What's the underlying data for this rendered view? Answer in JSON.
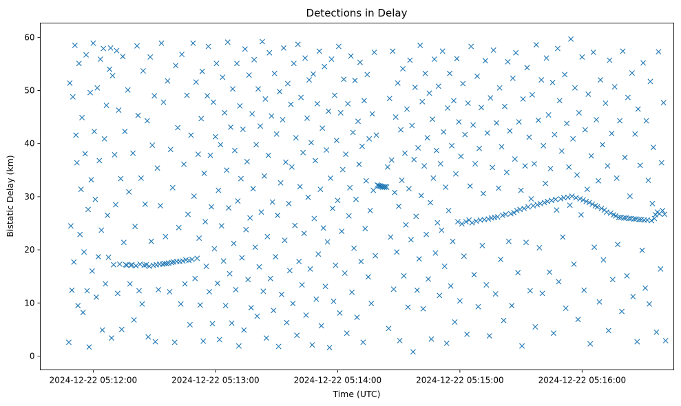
{
  "chart_data": {
    "type": "scatter",
    "title": "Detections in Delay",
    "xlabel": "Time (UTC)",
    "ylabel": "Bistatic Delay (km)",
    "marker": "x",
    "color": "#1f77b4",
    "grid": false,
    "legend": "none",
    "xlim": [
      "2024-12-22 05:11:34",
      "2024-12-22 05:16:45"
    ],
    "ylim": [
      -2.6,
      62.7
    ],
    "xticks": [
      "2024-12-22 05:12:00",
      "2024-12-22 05:13:00",
      "2024-12-22 05:14:00",
      "2024-12-22 05:15:00",
      "2024-12-22 05:16:00"
    ],
    "yticks": [
      0,
      10,
      20,
      30,
      40,
      50,
      60
    ],
    "x_start": "2024-12-22 05:11:48",
    "x_step_seconds": 0.5,
    "y": [
      2.6,
      51.4,
      24.5,
      12.4,
      48.8,
      17.7,
      58.5,
      41.6,
      36.4,
      9.5,
      55.1,
      22.9,
      31.4,
      44.9,
      8.2,
      19.6,
      38.1,
      56.7,
      12.3,
      27.6,
      1.7,
      49.6,
      33.2,
      16.0,
      58.9,
      42.3,
      29.5,
      11.1,
      50.5,
      18.7,
      36.8,
      55.9,
      23.7,
      4.9,
      57.9,
      40.9,
      13.6,
      47.2,
      26.5,
      18.6,
      54.0,
      58.0,
      3.4,
      52.8,
      17.2,
      37.9,
      28.5,
      57.5,
      11.8,
      46.3,
      17.3,
      33.4,
      5.0,
      56.4,
      21.4,
      42.3,
      17.2,
      17.1,
      50.1,
      30.9,
      13.6,
      17.1,
      17.2,
      38.2,
      6.8,
      24.4,
      17.0,
      58.4,
      45.3,
      12.3,
      17.3,
      33.5,
      9.8,
      53.7,
      17.1,
      28.6,
      17.2,
      44.3,
      3.6,
      16.9,
      56.3,
      21.6,
      39.7,
      17.1,
      49.0,
      2.7,
      17.2,
      35.4,
      12.5,
      17.3,
      28.3,
      58.9,
      17.3,
      47.8,
      17.4,
      22.5,
      17.4,
      51.8,
      17.5,
      12.1,
      38.9,
      17.6,
      31.7,
      17.7,
      2.6,
      54.7,
      17.8,
      43.0,
      24.2,
      17.8,
      9.8,
      56.8,
      17.9,
      36.1,
      13.6,
      18.1,
      49.1,
      26.7,
      18.0,
      5.9,
      41.6,
      18.2,
      58.9,
      30.1,
      14.6,
      51.6,
      18.4,
      38.0,
      22.2,
      9.6,
      44.7,
      53.6,
      2.8,
      34.4,
      25.3,
      16.9,
      49.0,
      58.3,
      12.1,
      37.8,
      28.1,
      6.1,
      47.8,
      20.2,
      41.3,
      55.1,
      13.7,
      31.2,
      3.1,
      39.8,
      24.5,
      52.5,
      17.9,
      45.8,
      9.5,
      35.0,
      59.1,
      27.9,
      15.5,
      43.1,
      6.2,
      50.3,
      21.2,
      38.7,
      12.5,
      55.1,
      29.2,
      1.9,
      47.1,
      33.4,
      18.5,
      42.7,
      4.9,
      57.8,
      23.8,
      36.6,
      14.4,
      52.9,
      26.0,
      9.1,
      45.6,
      31.5,
      55.8,
      20.5,
      39.8,
      7.5,
      50.3,
      16.8,
      43.3,
      27.1,
      59.2,
      12.2,
      33.9,
      48.4,
      3.4,
      22.5,
      37.8,
      57.1,
      14.6,
      45.2,
      29.0,
      8.6,
      53.2,
      18.7,
      41.8,
      26.5,
      1.8,
      49.8,
      32.6,
      11.6,
      44.5,
      58.0,
      21.8,
      36.5,
      6.3,
      51.3,
      28.7,
      16.1,
      47.4,
      35.6,
      9.9,
      55.1,
      24.6,
      41.1,
      3.9,
      58.7,
      17.8,
      31.9,
      48.7,
      13.4,
      38.3,
      23.1,
      56.1,
      7.7,
      44.8,
      29.9,
      52.0,
      16.4,
      40.2,
      2.1,
      53.1,
      25.9,
      36.8,
      10.7,
      47.5,
      19.2,
      57.4,
      31.4,
      5.7,
      42.9,
      24.1,
      54.5,
      13.1,
      38.8,
      21.5,
      46.1,
      1.6,
      33.5,
      55.9,
      27.8,
      10.3,
      49.1,
      17.1,
      40.6,
      29.3,
      58.3,
      8.1,
      45.8,
      23.5,
      35.1,
      52.1,
      15.6,
      38.0,
      4.3,
      47.5,
      26.4,
      31.7,
      56.5,
      12.0,
      42.1,
      20.3,
      51.9,
      29.5,
      7.3,
      44.2,
      36.1,
      55.3,
      17.8,
      39.5,
      2.6,
      48.1,
      24.0,
      33.0,
      53.0,
      14.9,
      40.9,
      27.4,
      9.9,
      45.6,
      31.2,
      57.2,
      18.9,
      41.6,
      32.2,
      32.1,
      32.0,
      32.0,
      31.9,
      31.8,
      31.9,
      31.8,
      31.9,
      31.8,
      35.6,
      5.2,
      48.5,
      22.4,
      36.9,
      57.4,
      12.6,
      30.8,
      45.0,
      19.6,
      51.4,
      28.2,
      2.9,
      42.6,
      33.1,
      54.1,
      15.1,
      38.2,
      24.7,
      46.5,
      9.2,
      31.5,
      55.7,
      21.9,
      43.4,
      0.8,
      37.0,
      50.6,
      26.3,
      12.4,
      39.2,
      18.3,
      58.5,
      30.2,
      47.9,
      8.9,
      35.8,
      53.2,
      22.9,
      41.1,
      14.5,
      49.5,
      28.9,
      3.2,
      44.6,
      33.5,
      55.9,
      19.4,
      38.7,
      25.1,
      50.8,
      11.4,
      36.2,
      23.7,
      57.4,
      42.2,
      16.9,
      31.8,
      2.4,
      46.7,
      27.4,
      53.2,
      13.2,
      39.6,
      21.6,
      48.1,
      6.4,
      34.3,
      56.0,
      25.3,
      44.1,
      10.4,
      37.6,
      24.9,
      51.3,
      18.8,
      41.7,
      25.3,
      4.1,
      47.6,
      25.6,
      32.0,
      58.3,
      25.1,
      43.5,
      15.3,
      36.2,
      25.4,
      52.7,
      9.3,
      39.1,
      25.6,
      46.8,
      20.8,
      30.6,
      25.7,
      55.6,
      13.4,
      42.0,
      25.8,
      3.8,
      48.6,
      26.0,
      35.5,
      57.6,
      26.1,
      11.7,
      43.9,
      26.2,
      31.6,
      50.5,
      18.2,
      39.4,
      26.5,
      6.7,
      47.0,
      26.7,
      34.6,
      55.4,
      21.6,
      42.4,
      26.8,
      9.5,
      52.3,
      27.0,
      37.1,
      57.1,
      27.4,
      15.7,
      44.1,
      27.6,
      31.2,
      1.9,
      48.4,
      27.8,
      35.8,
      21.4,
      54.3,
      28.1,
      41.2,
      12.3,
      29.6,
      49.2,
      28.3,
      36.2,
      5.5,
      58.6,
      28.5,
      44.4,
      20.4,
      28.7,
      52.0,
      11.8,
      39.6,
      28.9,
      32.5,
      56.1,
      29.1,
      45.4,
      15.8,
      35.3,
      29.3,
      51.5,
      4.3,
      41.7,
      29.5,
      27.5,
      57.9,
      14.0,
      48.1,
      29.6,
      38.6,
      22.4,
      29.8,
      53.0,
      9.0,
      43.8,
      29.9,
      35.6,
      28.4,
      59.7,
      30.1,
      40.9,
      17.3,
      50.5,
      29.8,
      34.1,
      6.9,
      45.8,
      29.6,
      26.6,
      56.3,
      29.4,
      12.4,
      42.6,
      29.1,
      31.4,
      49.3,
      28.9,
      2.3,
      37.7,
      28.6,
      57.2,
      20.5,
      28.3,
      44.5,
      28.1,
      33.0,
      10.2,
      52.0,
      27.8,
      39.8,
      18.1,
      27.5,
      47.6,
      27.1,
      35.8,
      4.8,
      55.7,
      26.9,
      41.9,
      14.4,
      26.6,
      50.7,
      26.4,
      33.5,
      21.0,
      26.1,
      44.3,
      26.1,
      8.4,
      57.4,
      26.0,
      37.4,
      26.0,
      15.1,
      48.7,
      25.9,
      30.1,
      25.9,
      53.3,
      11.2,
      25.8,
      41.8,
      25.8,
      2.7,
      46.5,
      25.7,
      35.9,
      25.7,
      19.9,
      55.2,
      25.6,
      12.8,
      44.3,
      25.6,
      33.1,
      9.8,
      51.7,
      25.5,
      28.7,
      39.3,
      25.9,
      26.6,
      4.5,
      27.1,
      57.3,
      26.8,
      16.4,
      36.4,
      27.4,
      47.7,
      26.7,
      2.9
    ]
  }
}
